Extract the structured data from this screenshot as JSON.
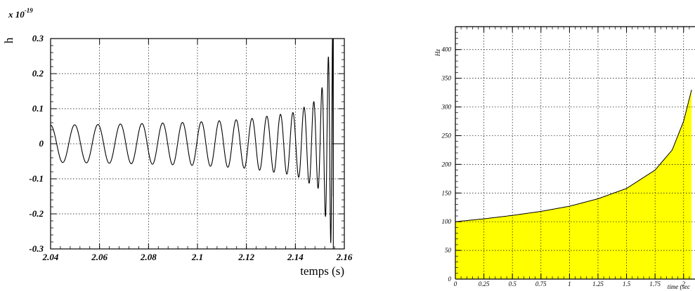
{
  "chart_data": [
    {
      "type": "line",
      "title": "",
      "xlabel": "temps (s)",
      "ylabel": "h",
      "y_multiplier": "x 10",
      "y_exponent": "-19",
      "xlim": [
        2.04,
        2.16
      ],
      "ylim": [
        -0.3,
        0.3
      ],
      "grid": true,
      "x_ticks": [
        "2.04",
        "2.06",
        "2.08",
        "2.1",
        "2.12",
        "2.14",
        "2.16"
      ],
      "y_ticks": [
        "-0.3",
        "-0.2",
        "-0.1",
        "0",
        "0.1",
        "0.2",
        "0.3"
      ],
      "series": [
        {
          "signal": "chirp",
          "t_start": 2.04,
          "t_coalescence": 2.1555,
          "f_start_hz": 100,
          "amplitude_start": 0.053,
          "amplitude_end": 0.3,
          "x": [
            2.04,
            2.06,
            2.08,
            2.1,
            2.12,
            2.14,
            2.15,
            2.155
          ],
          "envelope": [
            0.053,
            0.055,
            0.058,
            0.062,
            0.07,
            0.09,
            0.13,
            0.3
          ]
        }
      ]
    },
    {
      "type": "area",
      "title": "",
      "xlabel": "time (sec",
      "ylabel": "Hz",
      "xlim": [
        0,
        2.1
      ],
      "ylim": [
        0,
        440
      ],
      "grid": true,
      "fill_color": "#ffff00",
      "x_ticks": [
        "0",
        "0.25",
        "0.5",
        "0.75",
        "1",
        "1.25",
        "1.5",
        "1.75",
        "2"
      ],
      "y_ticks": [
        "0",
        "50",
        "100",
        "150",
        "200",
        "250",
        "300",
        "350",
        "400"
      ],
      "series": [
        {
          "x": [
            0,
            0.25,
            0.5,
            0.75,
            1,
            1.25,
            1.5,
            1.75,
            1.9,
            2.0,
            2.07
          ],
          "values": [
            100,
            105,
            111,
            118,
            127,
            140,
            158,
            190,
            225,
            275,
            330
          ]
        }
      ]
    }
  ]
}
